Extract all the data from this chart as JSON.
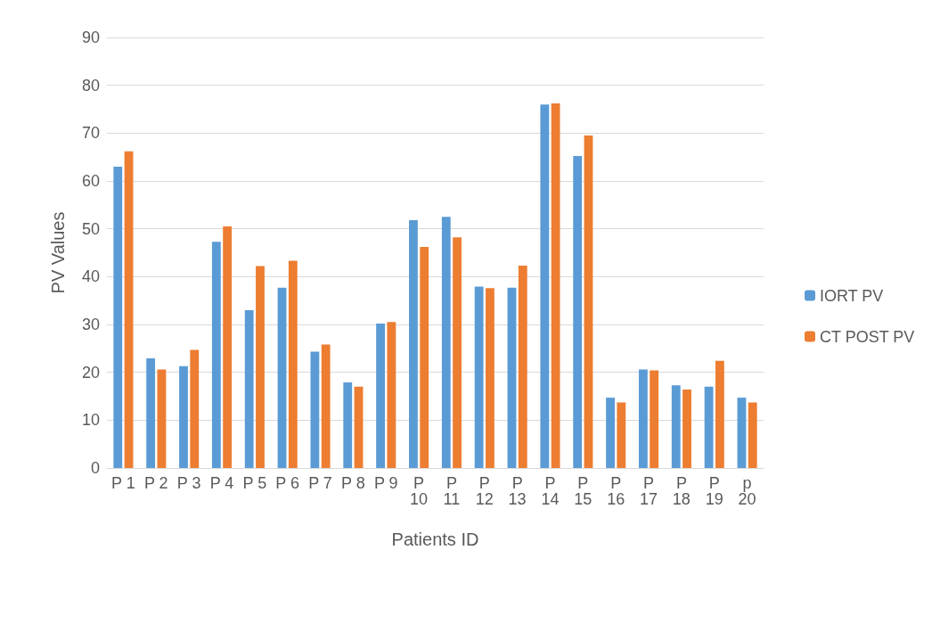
{
  "chart_data": {
    "type": "bar",
    "xlabel": "Patients ID",
    "ylabel": "PV Values",
    "categories": [
      "P 1",
      "P 2",
      "P 3",
      "P 4",
      "P 5",
      "P 6",
      "P 7",
      "P 8",
      "P 9",
      "P 10",
      "P 11",
      "P 12",
      "P 13",
      "P 14",
      "P 15",
      "P 16",
      "P 17",
      "P 18",
      "P 19",
      "p 20"
    ],
    "series": [
      {
        "name": "IORT PV",
        "color": "#5b9bd5",
        "values": [
          63,
          22.9,
          21.3,
          47.3,
          33,
          37.7,
          24.3,
          17.9,
          30.2,
          51.8,
          52.5,
          37.9,
          37.7,
          76,
          65.2,
          14.7,
          20.6,
          17.3,
          17,
          14.7
        ]
      },
      {
        "name": "CT POST PV",
        "color": "#ed7d31",
        "values": [
          66.2,
          20.6,
          24.7,
          50.5,
          42.2,
          43.3,
          25.8,
          17,
          30.5,
          46.2,
          48.2,
          37.6,
          42.3,
          76.2,
          69.5,
          13.7,
          20.4,
          16.4,
          22.4,
          13.7
        ]
      }
    ],
    "ylim": [
      0,
      90
    ],
    "yticks": [
      0,
      10,
      20,
      30,
      40,
      50,
      60,
      70,
      80,
      90
    ],
    "grid": "y",
    "legend": "right"
  }
}
